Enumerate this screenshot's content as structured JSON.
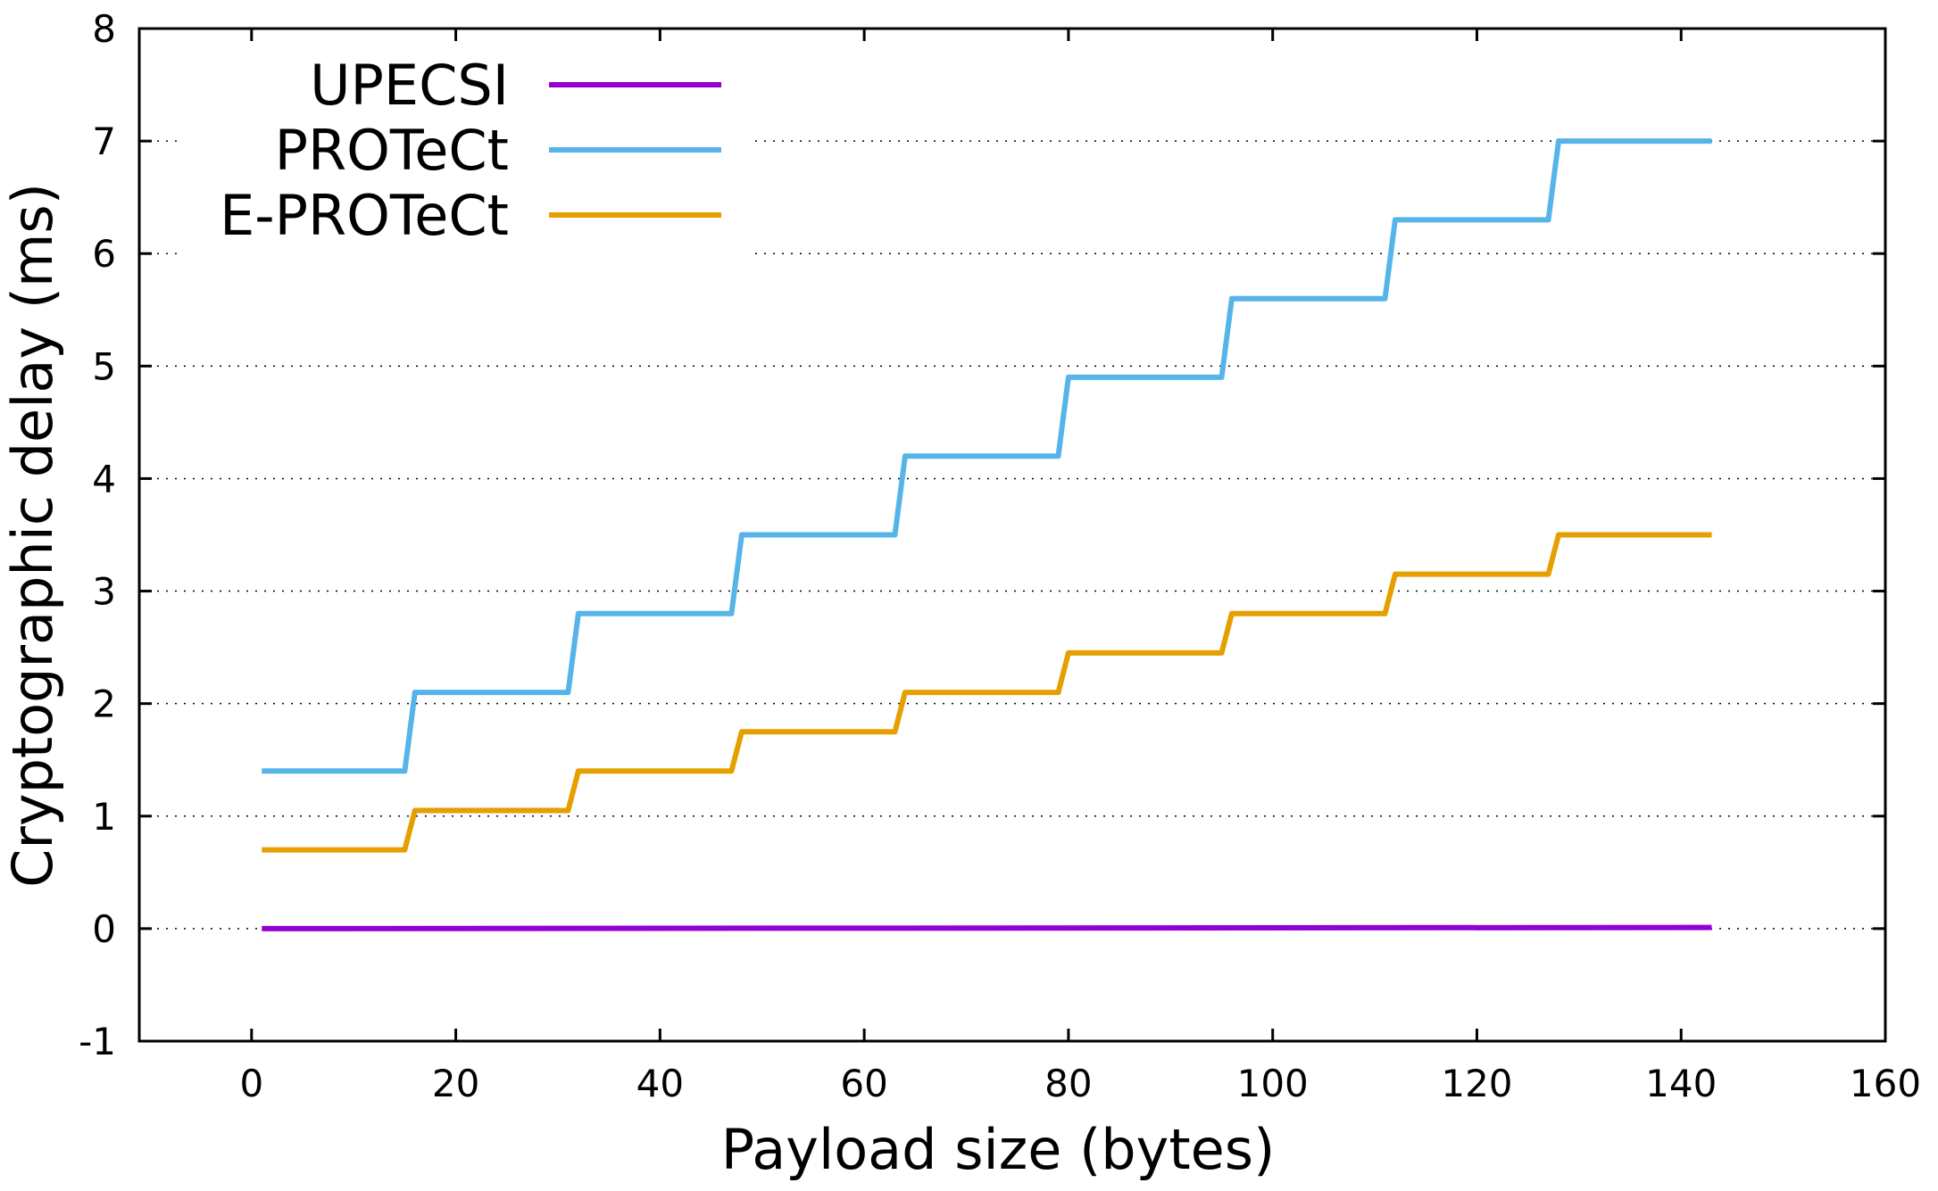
{
  "chart_data": {
    "type": "line",
    "title": "",
    "xlabel": "Payload size (bytes)",
    "ylabel": "Cryptographic delay (ms)",
    "xlim": [
      -11,
      160
    ],
    "ylim": [
      -1,
      8
    ],
    "xticks": [
      0,
      20,
      40,
      60,
      80,
      100,
      120,
      140,
      160
    ],
    "yticks": [
      -1,
      0,
      1,
      2,
      3,
      4,
      5,
      6,
      7,
      8
    ],
    "grid": "horizontal dotted",
    "legend_position": "top-left",
    "series": [
      {
        "name": "UPECSI",
        "color": "#9400d3",
        "x": [
          1,
          143
        ],
        "y": [
          0.0,
          0.01
        ]
      },
      {
        "name": "PROTeCt",
        "color": "#56b4e9",
        "x": [
          1,
          15,
          16,
          31,
          32,
          47,
          48,
          63,
          64,
          79,
          80,
          95,
          96,
          111,
          112,
          127,
          128,
          143
        ],
        "y": [
          1.4,
          1.4,
          2.1,
          2.1,
          2.8,
          2.8,
          3.5,
          3.5,
          4.2,
          4.2,
          4.9,
          4.9,
          5.6,
          5.6,
          6.3,
          6.3,
          7.0,
          7.0
        ]
      },
      {
        "name": "E-PROTeCt",
        "color": "#e69f00",
        "x": [
          1,
          15,
          16,
          31,
          32,
          47,
          48,
          63,
          64,
          79,
          80,
          95,
          96,
          111,
          112,
          127,
          128,
          143
        ],
        "y": [
          0.7,
          0.7,
          1.05,
          1.05,
          1.4,
          1.4,
          1.75,
          1.75,
          2.1,
          2.1,
          2.45,
          2.45,
          2.8,
          2.8,
          3.15,
          3.15,
          3.5,
          3.5
        ]
      }
    ]
  }
}
